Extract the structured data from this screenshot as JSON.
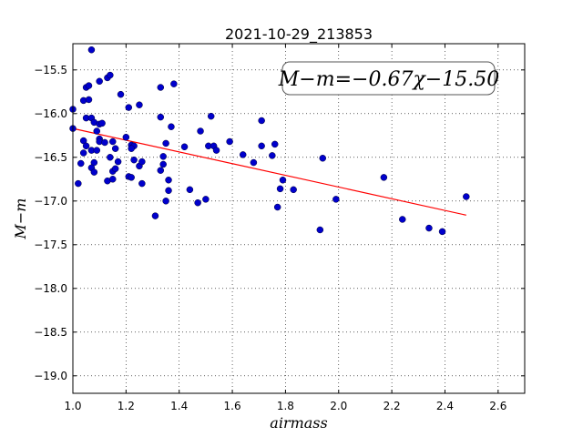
{
  "chart_data": {
    "type": "scatter",
    "title": "2021-10-29_213853",
    "xlabel": "airmass",
    "ylabel": "M−m",
    "xlim": [
      1.0,
      2.7
    ],
    "ylim": [
      -19.2,
      -15.2
    ],
    "y_inverted": true,
    "x_ticks": [
      1.0,
      1.2,
      1.4,
      1.6,
      1.8,
      2.0,
      2.2,
      2.4,
      2.6
    ],
    "x_tick_labels": [
      "1.0",
      "1.2",
      "1.4",
      "1.6",
      "1.8",
      "2.0",
      "2.2",
      "2.4",
      "2.6"
    ],
    "y_ticks": [
      -15.5,
      -16.0,
      -16.5,
      -17.0,
      -17.5,
      -18.0,
      -18.5,
      -19.0
    ],
    "y_tick_labels": [
      "−15.5",
      "−16.0",
      "−16.5",
      "−17.0",
      "−17.5",
      "−18.0",
      "−18.5",
      "−19.0"
    ],
    "grid": true,
    "annotation": "M−m=−0.67χ−15.50",
    "fit": {
      "slope": -0.67,
      "intercept": -15.5,
      "x_range": [
        1.0,
        2.48
      ],
      "color": "#ff0000"
    },
    "point_color": "#0000cc",
    "points": [
      [
        1.07,
        -15.27
      ],
      [
        1.05,
        -15.7
      ],
      [
        1.06,
        -15.68
      ],
      [
        1.1,
        -15.63
      ],
      [
        1.13,
        -15.59
      ],
      [
        1.14,
        -15.56
      ],
      [
        1.18,
        -15.78
      ],
      [
        1.0,
        -15.95
      ],
      [
        1.04,
        -15.85
      ],
      [
        1.06,
        -15.84
      ],
      [
        1.05,
        -16.05
      ],
      [
        1.07,
        -16.05
      ],
      [
        1.08,
        -16.1
      ],
      [
        1.1,
        -16.12
      ],
      [
        1.11,
        -16.11
      ],
      [
        1.09,
        -16.2
      ],
      [
        1.1,
        -16.29
      ],
      [
        1.1,
        -16.32
      ],
      [
        1.12,
        -16.33
      ],
      [
        1.0,
        -16.17
      ],
      [
        1.04,
        -16.31
      ],
      [
        1.05,
        -16.37
      ],
      [
        1.07,
        -16.42
      ],
      [
        1.04,
        -16.45
      ],
      [
        1.09,
        -16.42
      ],
      [
        1.03,
        -16.57
      ],
      [
        1.08,
        -16.56
      ],
      [
        1.07,
        -16.62
      ],
      [
        1.08,
        -16.67
      ],
      [
        1.02,
        -16.8
      ],
      [
        1.13,
        -16.77
      ],
      [
        1.15,
        -16.75
      ],
      [
        1.15,
        -16.66
      ],
      [
        1.16,
        -16.63
      ],
      [
        1.17,
        -16.55
      ],
      [
        1.14,
        -16.5
      ],
      [
        1.16,
        -16.4
      ],
      [
        1.15,
        -16.32
      ],
      [
        1.2,
        -16.27
      ],
      [
        1.21,
        -15.93
      ],
      [
        1.25,
        -15.9
      ],
      [
        1.22,
        -16.36
      ],
      [
        1.23,
        -16.37
      ],
      [
        1.22,
        -16.4
      ],
      [
        1.23,
        -16.53
      ],
      [
        1.25,
        -16.6
      ],
      [
        1.26,
        -16.55
      ],
      [
        1.21,
        -16.72
      ],
      [
        1.22,
        -16.73
      ],
      [
        1.26,
        -16.8
      ],
      [
        1.33,
        -15.7
      ],
      [
        1.38,
        -15.66
      ],
      [
        1.33,
        -16.04
      ],
      [
        1.37,
        -16.15
      ],
      [
        1.35,
        -16.34
      ],
      [
        1.34,
        -16.49
      ],
      [
        1.34,
        -16.58
      ],
      [
        1.33,
        -16.65
      ],
      [
        1.36,
        -16.76
      ],
      [
        1.36,
        -16.88
      ],
      [
        1.35,
        -17.0
      ],
      [
        1.31,
        -17.17
      ],
      [
        1.42,
        -16.38
      ],
      [
        1.48,
        -16.2
      ],
      [
        1.52,
        -16.03
      ],
      [
        1.51,
        -16.37
      ],
      [
        1.53,
        -16.37
      ],
      [
        1.54,
        -16.42
      ],
      [
        1.44,
        -16.87
      ],
      [
        1.47,
        -17.02
      ],
      [
        1.5,
        -16.98
      ],
      [
        1.59,
        -16.32
      ],
      [
        1.64,
        -16.47
      ],
      [
        1.68,
        -16.56
      ],
      [
        1.71,
        -16.08
      ],
      [
        1.71,
        -16.37
      ],
      [
        1.76,
        -16.35
      ],
      [
        1.75,
        -16.48
      ],
      [
        1.79,
        -16.76
      ],
      [
        1.78,
        -16.86
      ],
      [
        1.83,
        -16.87
      ],
      [
        1.77,
        -17.07
      ],
      [
        1.94,
        -16.51
      ],
      [
        1.99,
        -16.98
      ],
      [
        1.93,
        -17.33
      ],
      [
        2.17,
        -16.73
      ],
      [
        2.24,
        -17.21
      ],
      [
        2.34,
        -17.31
      ],
      [
        2.39,
        -17.35
      ],
      [
        2.48,
        -16.95
      ]
    ]
  }
}
